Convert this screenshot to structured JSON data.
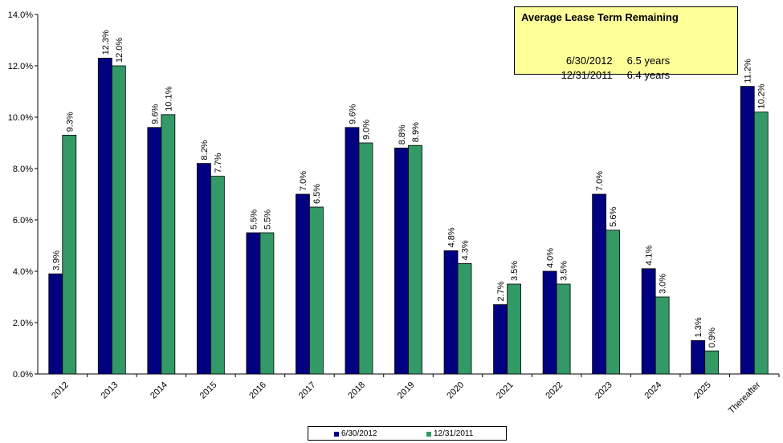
{
  "chart_data": {
    "type": "bar",
    "categories": [
      "2012",
      "2013",
      "2014",
      "2015",
      "2016",
      "2017",
      "2018",
      "2019",
      "2020",
      "2021",
      "2022",
      "2023",
      "2024",
      "2025",
      "Thereafter"
    ],
    "series": [
      {
        "name": "6/30/2012",
        "color": "#000080",
        "values": [
          3.9,
          12.3,
          9.6,
          8.2,
          5.5,
          7.0,
          9.6,
          8.8,
          4.8,
          2.7,
          4.0,
          7.0,
          4.1,
          1.3,
          11.2
        ],
        "labels": [
          "3.9%",
          "12.3%",
          "9.6%",
          "8.2%",
          "5.5%",
          "7.0%",
          "9.6%",
          "8.8%",
          "4.8%",
          "2.7%",
          "4.0%",
          "7.0%",
          "4.1%",
          "1.3%",
          "11.2%"
        ]
      },
      {
        "name": "12/31/2011",
        "color": "#339966",
        "values": [
          9.3,
          12.0,
          10.1,
          7.7,
          5.5,
          6.5,
          9.0,
          8.9,
          4.3,
          3.5,
          3.5,
          5.6,
          3.0,
          0.9,
          10.2
        ],
        "labels": [
          "9.3%",
          "12.0%",
          "10.1%",
          "7.7%",
          "5.5%",
          "6.5%",
          "9.0%",
          "8.9%",
          "4.3%",
          "3.5%",
          "3.5%",
          "5.6%",
          "3.0%",
          "0.9%",
          "10.2%"
        ]
      }
    ],
    "ylim": [
      0,
      14
    ],
    "yticks": [
      "0.0%",
      "2.0%",
      "4.0%",
      "6.0%",
      "8.0%",
      "10.0%",
      "12.0%",
      "14.0%"
    ],
    "legend_position": "bottom",
    "grid": false
  },
  "info_box": {
    "title": "Average Lease Term Remaining",
    "rows": [
      {
        "date": "6/30/2012",
        "value": "6.5 years"
      },
      {
        "date": "12/31/2011",
        "value": "6.4 years"
      }
    ],
    "background": "#ffff99"
  }
}
